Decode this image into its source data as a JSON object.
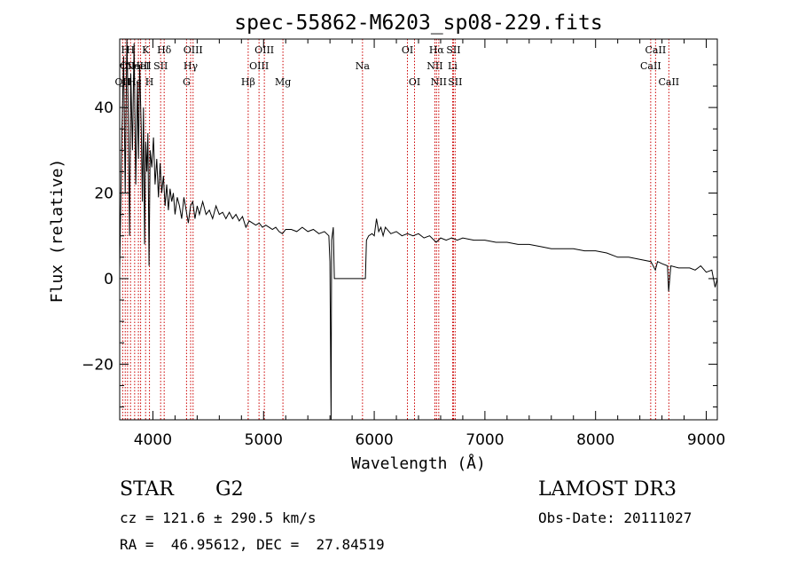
{
  "chart_data": {
    "type": "line",
    "title": "spec-55862-M6203_sp08-229.fits",
    "xlabel": "Wavelength (Å)",
    "ylabel": "Flux (relative)",
    "xlim": [
      3700,
      9100
    ],
    "ylim": [
      -33,
      56
    ],
    "x_ticks": [
      4000,
      5000,
      6000,
      7000,
      8000,
      9000
    ],
    "x_tick_labels": [
      "4000",
      "5000",
      "6000",
      "7000",
      "8000",
      "9000"
    ],
    "y_ticks": [
      -20,
      0,
      20,
      40
    ],
    "y_tick_labels": [
      "−20",
      "0",
      "20",
      "40"
    ],
    "line_color": "#000000",
    "marker_color": "#cc0000",
    "spectrum_points": [
      [
        3700,
        2
      ],
      [
        3720,
        34
      ],
      [
        3735,
        52
      ],
      [
        3750,
        20
      ],
      [
        3765,
        56
      ],
      [
        3775,
        42
      ],
      [
        3790,
        10
      ],
      [
        3800,
        48
      ],
      [
        3815,
        30
      ],
      [
        3830,
        55
      ],
      [
        3845,
        22
      ],
      [
        3860,
        46
      ],
      [
        3870,
        28
      ],
      [
        3880,
        50
      ],
      [
        3895,
        35
      ],
      [
        3905,
        18
      ],
      [
        3915,
        40
      ],
      [
        3925,
        8
      ],
      [
        3935,
        32
      ],
      [
        3945,
        25
      ],
      [
        3955,
        34
      ],
      [
        3965,
        3
      ],
      [
        3975,
        30
      ],
      [
        3990,
        26
      ],
      [
        4005,
        33
      ],
      [
        4020,
        22
      ],
      [
        4035,
        28
      ],
      [
        4050,
        19
      ],
      [
        4065,
        27
      ],
      [
        4080,
        20
      ],
      [
        4095,
        24
      ],
      [
        4110,
        17
      ],
      [
        4125,
        22
      ],
      [
        4140,
        16
      ],
      [
        4155,
        21
      ],
      [
        4170,
        18
      ],
      [
        4185,
        20
      ],
      [
        4200,
        15
      ],
      [
        4220,
        19
      ],
      [
        4240,
        17
      ],
      [
        4260,
        14
      ],
      [
        4280,
        19
      ],
      [
        4300,
        16
      ],
      [
        4320,
        13
      ],
      [
        4340,
        17
      ],
      [
        4360,
        18
      ],
      [
        4380,
        14
      ],
      [
        4400,
        17
      ],
      [
        4420,
        15
      ],
      [
        4450,
        18
      ],
      [
        4480,
        15
      ],
      [
        4510,
        16
      ],
      [
        4540,
        14
      ],
      [
        4570,
        17
      ],
      [
        4600,
        15
      ],
      [
        4630,
        15.5
      ],
      [
        4660,
        14
      ],
      [
        4690,
        15.5
      ],
      [
        4720,
        14
      ],
      [
        4750,
        15
      ],
      [
        4780,
        13.5
      ],
      [
        4810,
        14.5
      ],
      [
        4840,
        12
      ],
      [
        4870,
        13.5
      ],
      [
        4900,
        13
      ],
      [
        4930,
        12.5
      ],
      [
        4960,
        13
      ],
      [
        4990,
        12
      ],
      [
        5020,
        12.5
      ],
      [
        5050,
        12
      ],
      [
        5080,
        11.5
      ],
      [
        5110,
        12
      ],
      [
        5140,
        11
      ],
      [
        5170,
        10.5
      ],
      [
        5200,
        11.5
      ],
      [
        5250,
        11.5
      ],
      [
        5300,
        11
      ],
      [
        5350,
        12
      ],
      [
        5400,
        11
      ],
      [
        5450,
        11.5
      ],
      [
        5500,
        10.5
      ],
      [
        5550,
        11
      ],
      [
        5590,
        10
      ],
      [
        5600,
        4
      ],
      [
        5610,
        -33
      ],
      [
        5615,
        9
      ],
      [
        5630,
        12
      ],
      [
        5640,
        0
      ],
      [
        5900,
        0
      ],
      [
        5920,
        0
      ],
      [
        5930,
        9
      ],
      [
        5950,
        10
      ],
      [
        5980,
        10.5
      ],
      [
        6000,
        10
      ],
      [
        6020,
        14
      ],
      [
        6040,
        11
      ],
      [
        6060,
        12
      ],
      [
        6080,
        10
      ],
      [
        6100,
        12
      ],
      [
        6150,
        10.5
      ],
      [
        6200,
        11
      ],
      [
        6250,
        10
      ],
      [
        6300,
        10.5
      ],
      [
        6350,
        10
      ],
      [
        6400,
        10.5
      ],
      [
        6450,
        9.5
      ],
      [
        6500,
        10
      ],
      [
        6560,
        8.5
      ],
      [
        6600,
        9.5
      ],
      [
        6650,
        9
      ],
      [
        6700,
        9.5
      ],
      [
        6750,
        9
      ],
      [
        6800,
        9.5
      ],
      [
        6900,
        9
      ],
      [
        7000,
        9
      ],
      [
        7100,
        8.5
      ],
      [
        7200,
        8.5
      ],
      [
        7300,
        8
      ],
      [
        7400,
        8
      ],
      [
        7500,
        7.5
      ],
      [
        7600,
        7
      ],
      [
        7700,
        7
      ],
      [
        7800,
        7
      ],
      [
        7900,
        6.5
      ],
      [
        8000,
        6.5
      ],
      [
        8100,
        6
      ],
      [
        8200,
        5
      ],
      [
        8300,
        5
      ],
      [
        8400,
        4.5
      ],
      [
        8500,
        4
      ],
      [
        8540,
        2
      ],
      [
        8560,
        4
      ],
      [
        8600,
        3.5
      ],
      [
        8650,
        3
      ],
      [
        8660,
        -3
      ],
      [
        8680,
        3
      ],
      [
        8750,
        2.5
      ],
      [
        8850,
        2.5
      ],
      [
        8900,
        2
      ],
      [
        8950,
        3
      ],
      [
        9000,
        1.5
      ],
      [
        9050,
        2
      ],
      [
        9080,
        -2
      ],
      [
        9100,
        0
      ]
    ],
    "line_markers": [
      {
        "wavelength": 3727,
        "label": "OII",
        "row": 2
      },
      {
        "wavelength": 3750,
        "label": "H",
        "row": 0
      },
      {
        "wavelength": 3771,
        "label": "OII",
        "row": 1
      },
      {
        "wavelength": 3798,
        "label": "H",
        "row": 0
      },
      {
        "wavelength": 3835,
        "label": "Hϵ",
        "row": 2
      },
      {
        "wavelength": 3869,
        "label": "NeIII",
        "row": 1
      },
      {
        "wavelength": 3889,
        "label": "HeI",
        "row": 1
      },
      {
        "wavelength": 3934,
        "label": "K",
        "row": 0
      },
      {
        "wavelength": 3969,
        "label": "H",
        "row": 2
      },
      {
        "wavelength": 4070,
        "label": "SII",
        "row": 1
      },
      {
        "wavelength": 4102,
        "label": "Hδ",
        "row": 0
      },
      {
        "wavelength": 4304,
        "label": "G",
        "row": 2
      },
      {
        "wavelength": 4341,
        "label": "Hγ",
        "row": 1
      },
      {
        "wavelength": 4363,
        "label": "OIII",
        "row": 0
      },
      {
        "wavelength": 4861,
        "label": "Hβ",
        "row": 2
      },
      {
        "wavelength": 4959,
        "label": "OIII",
        "row": 1
      },
      {
        "wavelength": 5007,
        "label": "OIII",
        "row": 0
      },
      {
        "wavelength": 5175,
        "label": "Mg",
        "row": 2
      },
      {
        "wavelength": 5894,
        "label": "Na",
        "row": 1
      },
      {
        "wavelength": 6300,
        "label": "OI",
        "row": 0
      },
      {
        "wavelength": 6364,
        "label": "OI",
        "row": 2
      },
      {
        "wavelength": 6548,
        "label": "NII",
        "row": 1
      },
      {
        "wavelength": 6563,
        "label": "Hα",
        "row": 0
      },
      {
        "wavelength": 6583,
        "label": "NII",
        "row": 2
      },
      {
        "wavelength": 6708,
        "label": "Li",
        "row": 1
      },
      {
        "wavelength": 6716,
        "label": "SII",
        "row": 0
      },
      {
        "wavelength": 6731,
        "label": "SII",
        "row": 2
      },
      {
        "wavelength": 8498,
        "label": "CaII",
        "row": 1
      },
      {
        "wavelength": 8542,
        "label": "CaII",
        "row": 0
      },
      {
        "wavelength": 8662,
        "label": "CaII",
        "row": 2
      }
    ]
  },
  "info": {
    "object_class": "STAR",
    "subclass": "G2",
    "survey": "LAMOST DR3",
    "cz": "cz = 121.6 ± 290.5 km/s",
    "obs_date": "Obs-Date: 20111027",
    "coords": "RA =  46.95612, DEC =  27.84519"
  }
}
